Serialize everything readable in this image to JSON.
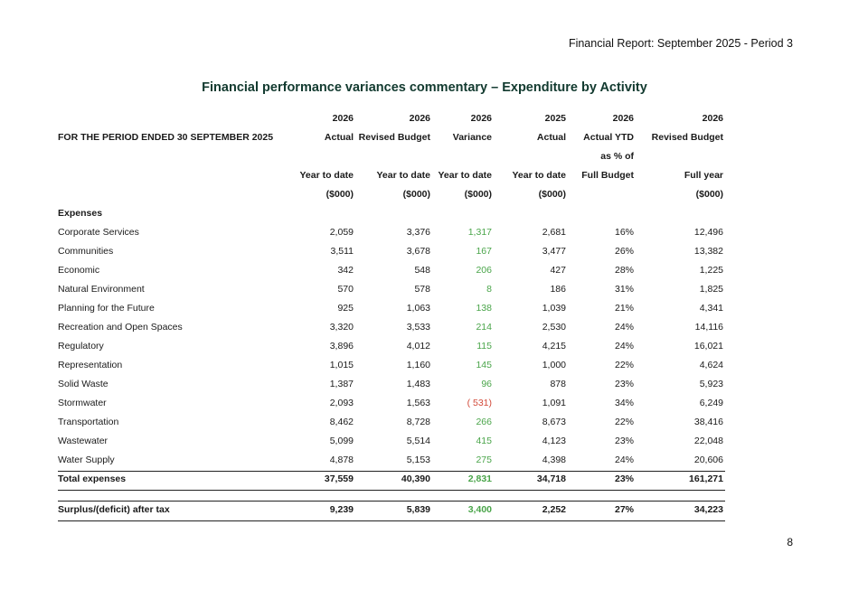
{
  "header": {
    "report_title": "Financial Report:  September 2025  - Period 3"
  },
  "title": "Financial performance variances commentary – Expenditure by Activity",
  "page_number": "8",
  "table": {
    "period_label": "FOR THE PERIOD ENDED 30 SEPTEMBER 2025",
    "header_rows": [
      [
        "2026",
        "2026",
        "2026",
        "2025",
        "2026",
        "2026"
      ],
      [
        "Actual",
        "Revised Budget",
        "Variance",
        "Actual",
        "Actual YTD",
        "Revised Budget"
      ],
      [
        "",
        "",
        "",
        "",
        "as % of",
        ""
      ],
      [
        "Year to date",
        "Year to date",
        "Year to date",
        "Year to date",
        "Full Budget",
        "Full year"
      ],
      [
        "($000)",
        "($000)",
        "($000)",
        "($000)",
        "",
        "($000)"
      ]
    ],
    "section_label": "Expenses",
    "rows": [
      {
        "label": "Corporate Services",
        "actual": "2,059",
        "budget": "3,376",
        "variance": "1,317",
        "prior": "2,681",
        "pct": "16%",
        "full": "12,496"
      },
      {
        "label": "Communities",
        "actual": "3,511",
        "budget": "3,678",
        "variance": "167",
        "prior": "3,477",
        "pct": "26%",
        "full": "13,382"
      },
      {
        "label": "Economic",
        "actual": "342",
        "budget": "548",
        "variance": "206",
        "prior": "427",
        "pct": "28%",
        "full": "1,225"
      },
      {
        "label": "Natural Environment",
        "actual": "570",
        "budget": "578",
        "variance": "8",
        "prior": "186",
        "pct": "31%",
        "full": "1,825"
      },
      {
        "label": "Planning for the Future",
        "actual": "925",
        "budget": "1,063",
        "variance": "138",
        "prior": "1,039",
        "pct": "21%",
        "full": "4,341"
      },
      {
        "label": "Recreation and Open Spaces",
        "actual": "3,320",
        "budget": "3,533",
        "variance": "214",
        "prior": "2,530",
        "pct": "24%",
        "full": "14,116"
      },
      {
        "label": "Regulatory",
        "actual": "3,896",
        "budget": "4,012",
        "variance": "115",
        "prior": "4,215",
        "pct": "24%",
        "full": "16,021"
      },
      {
        "label": "Representation",
        "actual": "1,015",
        "budget": "1,160",
        "variance": "145",
        "prior": "1,000",
        "pct": "22%",
        "full": "4,624"
      },
      {
        "label": "Solid Waste",
        "actual": "1,387",
        "budget": "1,483",
        "variance": "96",
        "prior": "878",
        "pct": "23%",
        "full": "5,923"
      },
      {
        "label": "Stormwater",
        "actual": "2,093",
        "budget": "1,563",
        "variance": "( 531)",
        "prior": "1,091",
        "pct": "34%",
        "full": "6,249"
      },
      {
        "label": "Transportation",
        "actual": "8,462",
        "budget": "8,728",
        "variance": "266",
        "prior": "8,673",
        "pct": "22%",
        "full": "38,416"
      },
      {
        "label": "Wastewater",
        "actual": "5,099",
        "budget": "5,514",
        "variance": "415",
        "prior": "4,123",
        "pct": "23%",
        "full": "22,048"
      },
      {
        "label": "Water Supply",
        "actual": "4,878",
        "budget": "5,153",
        "variance": "275",
        "prior": "4,398",
        "pct": "24%",
        "full": "20,606"
      }
    ],
    "total": {
      "label": "Total expenses",
      "actual": "37,559",
      "budget": "40,390",
      "variance": "2,831",
      "prior": "34,718",
      "pct": "23%",
      "full": "161,271"
    },
    "surplus": {
      "label": "Surplus/(deficit) after tax",
      "actual": "9,239",
      "budget": "5,839",
      "variance": "3,400",
      "prior": "2,252",
      "pct": "27%",
      "full": "34,223"
    }
  },
  "colors": {
    "title": "#123a2f",
    "favourable": "#4aa54a",
    "unfavourable": "#d24a3a"
  }
}
